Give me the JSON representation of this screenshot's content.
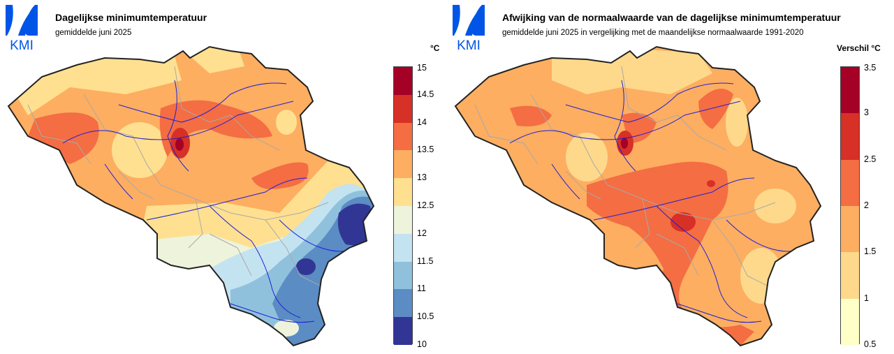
{
  "left": {
    "logo_text": "KMI",
    "title": "Dagelijkse minimumtemperatuur",
    "subtitle": "gemiddelde juni 2025",
    "unit": "°C",
    "legend": {
      "ticks": [
        "15",
        "14.5",
        "14",
        "13.5",
        "13",
        "12.5",
        "12",
        "11.5",
        "11",
        "10.5",
        "10"
      ],
      "colors": [
        "#a50026",
        "#d73027",
        "#f46d43",
        "#fdae61",
        "#fee090",
        "#eef3dc",
        "#c3e3f0",
        "#8fc1dd",
        "#5b8cc4",
        "#313695"
      ]
    }
  },
  "right": {
    "logo_text": "KMI",
    "title": "Afwijking van de normaalwaarde van de dagelijkse minimumtemperatuur",
    "subtitle": "gemiddelde juni 2025 in vergelijking met de maandelijkse normaalwaarde 1991-2020",
    "unit": "Verschil °C",
    "legend": {
      "ticks": [
        "3.5",
        "3",
        "2.5",
        "2",
        "1.5",
        "1",
        "0.5"
      ],
      "colors": [
        "#a50026",
        "#d73027",
        "#f46d43",
        "#fdae61",
        "#fed98b",
        "#ffffc8"
      ]
    }
  },
  "colors": {
    "logo_blue": "#0055e6",
    "border": "#222222",
    "river": "#1f1fd6",
    "province_line": "#a9a9a9"
  }
}
